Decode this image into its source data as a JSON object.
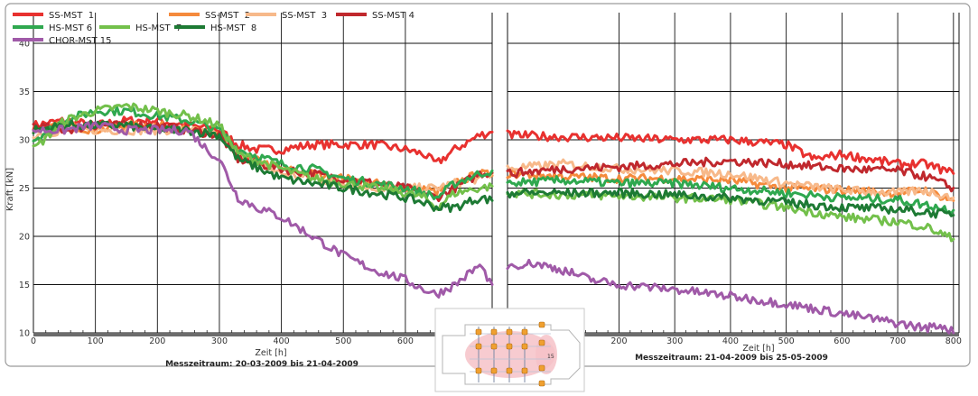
{
  "chart_data": [
    {
      "type": "line",
      "title": "",
      "xlabel": "Zeit [h]",
      "ylabel": "Kraft [kN]",
      "caption": "Messzeitraum: 20-03-2009 bis 21-04-2009",
      "xlim": [
        0,
        740
      ],
      "ylim": [
        10,
        40
      ],
      "xticks": [
        0,
        100,
        200,
        300,
        400,
        500,
        600
      ],
      "yticks": [
        10,
        15,
        20,
        25,
        30,
        35,
        40
      ],
      "grid": true,
      "legend": "top-left, three rows",
      "series": [
        {
          "name": "SS-MST 1",
          "color": "#e8312f",
          "x": [
            0,
            50,
            100,
            150,
            200,
            250,
            300,
            330,
            360,
            400,
            450,
            500,
            550,
            600,
            630,
            650,
            680,
            720,
            740
          ],
          "y": [
            31.5,
            32,
            31.5,
            32,
            32,
            31.5,
            31,
            29.5,
            29,
            29,
            29.5,
            29.5,
            29.5,
            29,
            28.5,
            27.5,
            29,
            30.5,
            30.8
          ]
        },
        {
          "name": "SS-MST 2",
          "color": "#f58a3c",
          "x": [
            0,
            50,
            100,
            150,
            200,
            250,
            300,
            330,
            400,
            450,
            500,
            550,
            600,
            630,
            650,
            680,
            720,
            740
          ],
          "y": [
            31,
            31.5,
            31,
            31.5,
            31.5,
            31,
            30.5,
            28.5,
            27,
            26.5,
            26,
            25.5,
            25,
            25,
            24.5,
            25.5,
            26.5,
            26.3
          ]
        },
        {
          "name": "SS-MST 3",
          "color": "#f7b98a",
          "x": [
            0,
            50,
            100,
            150,
            200,
            250,
            300,
            330,
            400,
            450,
            500,
            550,
            600,
            630,
            650,
            680,
            720,
            740
          ],
          "y": [
            30.5,
            31,
            31,
            31,
            31,
            31,
            30.5,
            28.5,
            26.5,
            26,
            25.5,
            25,
            25,
            25,
            25,
            25.5,
            26,
            26.5
          ]
        },
        {
          "name": "SS-MST 4",
          "color": "#c0282d",
          "x": [
            0,
            50,
            100,
            150,
            200,
            250,
            300,
            330,
            400,
            450,
            500,
            550,
            600,
            630,
            650,
            680,
            720,
            740
          ],
          "y": [
            31.5,
            31,
            31.5,
            31.5,
            31.5,
            31,
            30.5,
            28,
            27,
            26.5,
            26,
            25.5,
            25,
            24.5,
            24,
            25,
            26.5,
            26.6
          ]
        },
        {
          "name": "HS-MST 6",
          "color": "#2fa84f",
          "x": [
            0,
            50,
            100,
            150,
            200,
            250,
            300,
            330,
            400,
            450,
            500,
            550,
            600,
            630,
            650,
            680,
            720,
            740
          ],
          "y": [
            30,
            32,
            33,
            33,
            32.5,
            32,
            31,
            29,
            27.5,
            27,
            26,
            25.5,
            25,
            24.5,
            24,
            25.5,
            26.5,
            26.8
          ]
        },
        {
          "name": "HS-MST 7",
          "color": "#73c04b",
          "x": [
            0,
            50,
            100,
            150,
            200,
            250,
            300,
            330,
            400,
            450,
            500,
            550,
            600,
            630,
            650,
            680,
            720,
            740
          ],
          "y": [
            29,
            32,
            33,
            33.5,
            33,
            32.5,
            31.5,
            28.5,
            27,
            26,
            25.5,
            25,
            24.5,
            24,
            23,
            24.5,
            25,
            25.2
          ]
        },
        {
          "name": "HS-MST 8",
          "color": "#1d7a34",
          "x": [
            0,
            50,
            100,
            150,
            200,
            250,
            300,
            330,
            400,
            450,
            500,
            550,
            600,
            630,
            650,
            680,
            720,
            740
          ],
          "y": [
            31,
            31.5,
            31.5,
            31.5,
            31,
            31,
            30.5,
            28,
            26,
            25.5,
            25,
            24.5,
            24,
            23.5,
            23,
            23,
            24,
            23.7
          ]
        },
        {
          "name": "CHOR-MST 15",
          "color": "#a05aa8",
          "x": [
            0,
            50,
            100,
            150,
            200,
            250,
            280,
            300,
            330,
            360,
            400,
            450,
            500,
            550,
            600,
            630,
            650,
            680,
            720,
            740
          ],
          "y": [
            31,
            31,
            31.5,
            31,
            31,
            31,
            29,
            28,
            24,
            23,
            22,
            20,
            18,
            16.5,
            15.5,
            14.5,
            14,
            15,
            17,
            15
          ]
        }
      ]
    },
    {
      "type": "line",
      "title": "",
      "xlabel": "Zeit [h]",
      "ylabel": "",
      "caption": "Messzeitraum: 21-04-2009 bis 25-05-2009",
      "xlim": [
        0,
        810
      ],
      "ylim": [
        10,
        40
      ],
      "xticks": [
        200,
        300,
        400,
        500,
        600,
        700,
        800
      ],
      "yticks": [
        10,
        15,
        20,
        25,
        30,
        35,
        40
      ],
      "grid": true,
      "series": [
        {
          "name": "SS-MST 1",
          "color": "#e8312f",
          "x": [
            0,
            100,
            200,
            300,
            400,
            500,
            550,
            600,
            700,
            750,
            800
          ],
          "y": [
            30.5,
            30.3,
            30.2,
            30,
            30,
            29.5,
            28,
            28.5,
            27.5,
            27.5,
            26.5
          ]
        },
        {
          "name": "SS-MST 2",
          "color": "#f58a3c",
          "x": [
            0,
            100,
            200,
            300,
            400,
            500,
            600,
            700,
            750,
            800
          ],
          "y": [
            26.5,
            26.2,
            26,
            26,
            25.8,
            25,
            24.8,
            24.5,
            24.8,
            23.7
          ]
        },
        {
          "name": "SS-MST 3",
          "color": "#f7b98a",
          "x": [
            0,
            100,
            200,
            300,
            400,
            500,
            600,
            700,
            750,
            800
          ],
          "y": [
            27,
            27.5,
            27,
            26.8,
            26.5,
            25.5,
            24.8,
            24.5,
            24.8,
            24
          ]
        },
        {
          "name": "SS-MST 4",
          "color": "#c0282d",
          "x": [
            0,
            100,
            200,
            300,
            400,
            500,
            600,
            700,
            750,
            800
          ],
          "y": [
            26.5,
            27,
            27.2,
            27.5,
            27.8,
            27.5,
            27,
            26.8,
            26.2,
            25
          ]
        },
        {
          "name": "HS-MST 6",
          "color": "#2fa84f",
          "x": [
            0,
            100,
            200,
            300,
            400,
            500,
            600,
            700,
            800
          ],
          "y": [
            25.5,
            25.8,
            25.5,
            25.5,
            25,
            24.5,
            24,
            23.8,
            22.7
          ]
        },
        {
          "name": "HS-MST 7",
          "color": "#73c04b",
          "x": [
            0,
            100,
            200,
            300,
            400,
            500,
            600,
            700,
            750,
            800
          ],
          "y": [
            24.5,
            24.3,
            24.2,
            24,
            23.8,
            23,
            22,
            21.5,
            21,
            19.7
          ]
        },
        {
          "name": "HS-MST 8",
          "color": "#1d7a34",
          "x": [
            0,
            100,
            200,
            300,
            400,
            500,
            600,
            700,
            800
          ],
          "y": [
            24.5,
            24.5,
            24.5,
            24.3,
            24,
            23.5,
            23,
            22.8,
            22.2
          ]
        },
        {
          "name": "CHOR-MST 15",
          "color": "#a05aa8",
          "x": [
            0,
            50,
            100,
            150,
            200,
            300,
            400,
            500,
            600,
            700,
            750,
            780,
            800
          ],
          "y": [
            17,
            17.2,
            16.5,
            15.5,
            15,
            14.5,
            13.8,
            13,
            12,
            11,
            10.5,
            10.8,
            10
          ]
        }
      ]
    }
  ],
  "legend": {
    "items": [
      {
        "label": "SS-MST  1",
        "color": "#e8312f"
      },
      {
        "label": "SS-MST  2",
        "color": "#f58a3c"
      },
      {
        "label": "SS-MST  3",
        "color": "#f7b98a"
      },
      {
        "label": "SS-MST 4",
        "color": "#c0282d"
      },
      {
        "label": "HS-MST 6",
        "color": "#2fa84f"
      },
      {
        "label": "HS-MST  7",
        "color": "#73c04b"
      },
      {
        "label": "HS-MST  8",
        "color": "#1d7a34"
      },
      {
        "label": "CHOR-MST 15",
        "color": "#a05aa8"
      }
    ]
  },
  "y_axis_title": "Kraft [kN]",
  "left_x_axis_title": "Zeit [h]",
  "right_x_axis_title": "Zeit [h]",
  "left_caption": "Messzeitraum: 20-03-2009 bis 21-04-2009",
  "right_caption": "Messzeitraum: 21-04-2009 bis 25-05-2009",
  "floorplan": {
    "label": "15",
    "marker_color": "#f0a030",
    "zone_color": "#f6c2c8"
  }
}
